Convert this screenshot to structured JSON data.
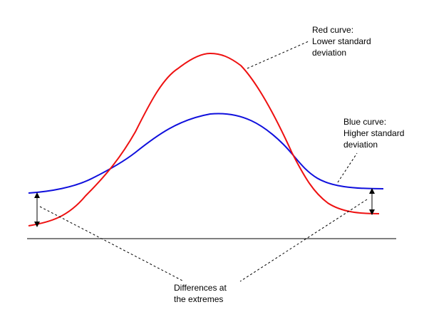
{
  "labels": {
    "red_curve": [
      "Red curve:",
      "Lower standard",
      "deviation"
    ],
    "blue_curve": [
      "Blue curve:",
      "Higher standard",
      "deviation"
    ],
    "differences": [
      "Differences at",
      "the extremes"
    ]
  },
  "colors": {
    "red_curve": "#ee1111",
    "blue_curve": "#1010dd",
    "baseline": "#000000",
    "leader_lines": "#000000",
    "arrows": "#000000"
  }
}
